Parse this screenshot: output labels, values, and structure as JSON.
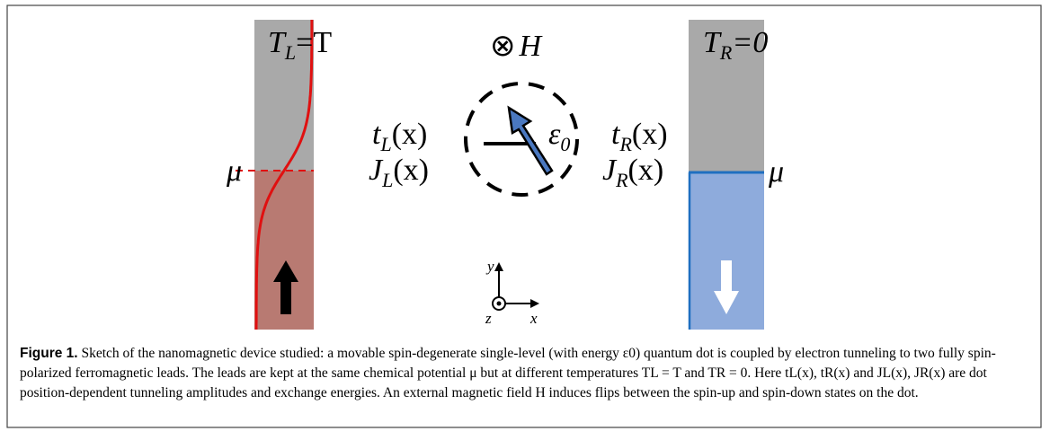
{
  "figure": {
    "left_temp": {
      "symbol": "T",
      "subscript": "L",
      "suffix": "=T"
    },
    "right_temp": {
      "symbol": "T",
      "subscript": "R",
      "suffix": "=0"
    },
    "field": {
      "symbol": "⊗",
      "name": "H"
    },
    "left_mu": "μ",
    "right_mu": "μ",
    "t_left": {
      "symbol": "t",
      "subscript": "L",
      "suffix": "(x)"
    },
    "j_left": {
      "symbol": "J",
      "subscript": "L",
      "suffix": "(x)"
    },
    "t_right": {
      "symbol": "t",
      "subscript": "R",
      "suffix": "(x)"
    },
    "j_right": {
      "symbol": "J",
      "subscript": "R",
      "suffix": "(x)"
    },
    "level": {
      "symbol": "ε",
      "subscript": "0"
    },
    "axes": {
      "y": "y",
      "z": "z",
      "x": "x"
    }
  },
  "caption": {
    "label": "Figure 1.",
    "text": "Sketch of the nanomagnetic device studied: a movable spin-degenerate single-level (with energy ε0) quantum dot is coupled by electron tunneling to two fully spin-polarized ferromagnetic leads. The leads are kept at the same chemical potential μ but at different temperatures TL = T and TR = 0. Here tL(x), tR(x) and JL(x), JR(x) are dot position-dependent tunneling amplitudes and exchange energies. An external magnetic field H induces flips between the spin-up and spin-down states on the dot."
  }
}
